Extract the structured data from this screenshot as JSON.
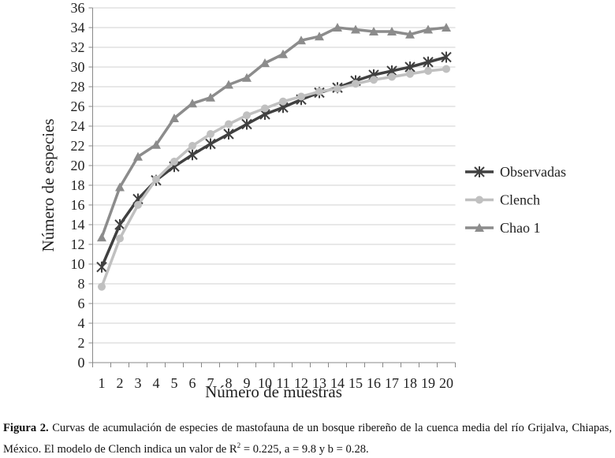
{
  "chart_data": {
    "type": "line",
    "x_label": "Número de muestras",
    "y_label": "Número de especies",
    "categories": [
      "1",
      "2",
      "3",
      "4",
      "5",
      "6",
      "7",
      "8",
      "9",
      "10",
      "11",
      "12",
      "13",
      "14",
      "15",
      "16",
      "17",
      "18",
      "19",
      "20"
    ],
    "series": [
      {
        "name": "Observadas",
        "color": "#404040",
        "marker": "asterisk",
        "values": [
          9.7,
          14.0,
          16.6,
          18.5,
          19.9,
          21.1,
          22.2,
          23.2,
          24.2,
          25.2,
          25.9,
          26.7,
          27.4,
          27.9,
          28.6,
          29.2,
          29.6,
          30.0,
          30.5,
          31.0
        ]
      },
      {
        "name": "Clench",
        "color": "#c0c0c0",
        "marker": "circle",
        "values": [
          7.7,
          12.6,
          16.0,
          18.6,
          20.4,
          22.0,
          23.2,
          24.2,
          25.1,
          25.8,
          26.5,
          27.0,
          27.5,
          27.8,
          28.3,
          28.7,
          29.0,
          29.3,
          29.6,
          29.8
        ]
      },
      {
        "name": "Chao 1",
        "color": "#8c8c8c",
        "marker": "triangle",
        "values": [
          12.7,
          17.8,
          20.9,
          22.1,
          24.8,
          26.3,
          26.9,
          28.2,
          28.9,
          30.4,
          31.3,
          32.7,
          33.1,
          34.0,
          33.8,
          33.6,
          33.6,
          33.3,
          33.8,
          34.0
        ]
      }
    ],
    "ylim": [
      0,
      36
    ],
    "yticks": [
      0,
      2,
      4,
      6,
      8,
      10,
      12,
      14,
      16,
      18,
      20,
      22,
      24,
      26,
      28,
      30,
      32,
      34,
      36
    ],
    "grid": true,
    "legend": "right"
  },
  "caption": {
    "label": "Figura 2.",
    "text_before": " Curvas de acumulación de especies de mastofauna de un bosque ribereño de la cuenca media del río Grijalva, Chiapas, México. El modelo de Clench indica un valor de R",
    "superscript": "2",
    "text_after": " = 0.225, a = 9.8 y b = 0.28."
  }
}
